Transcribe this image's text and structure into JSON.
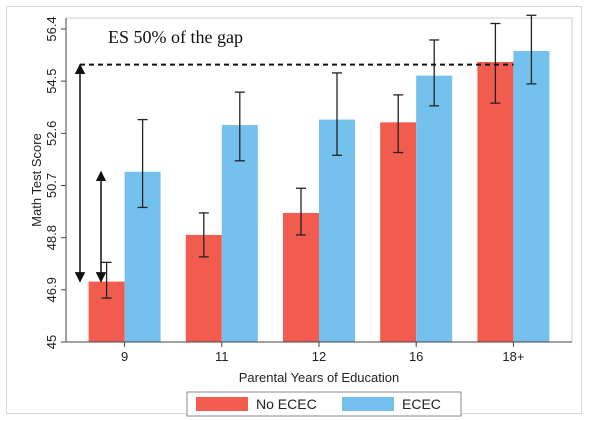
{
  "chart_data": {
    "type": "bar",
    "annotation": "ES 50% of the gap",
    "xlabel": "Parental Years of Education",
    "ylabel": "Math Test Score",
    "categories": [
      "9",
      "11",
      "12",
      "16",
      "18+"
    ],
    "yticks": [
      "45",
      "46.9",
      "48.8",
      "50.7",
      "52.6",
      "54.5",
      "56.4"
    ],
    "ylim": [
      45,
      56.8
    ],
    "grid": false,
    "legend_position": "bottom",
    "series": [
      {
        "name": "No ECEC",
        "color": "#f25c4f",
        "values": [
          47.2,
          48.9,
          49.7,
          53.0,
          55.2
        ],
        "ci_low": [
          46.6,
          48.1,
          48.9,
          51.9,
          53.7
        ],
        "ci_high": [
          47.9,
          49.7,
          50.6,
          54.0,
          56.6
        ]
      },
      {
        "name": "ECEC",
        "color": "#74c1ee",
        "values": [
          51.2,
          52.9,
          53.1,
          54.7,
          55.6
        ],
        "ci_low": [
          49.9,
          51.6,
          51.8,
          53.6,
          54.4
        ],
        "ci_high": [
          53.1,
          54.1,
          54.8,
          56.0,
          56.9
        ]
      }
    ],
    "reference_line": 55.1,
    "gap_arrows": [
      {
        "from": 55.1,
        "to": 47.2
      },
      {
        "from": 51.2,
        "to": 47.2
      }
    ]
  }
}
